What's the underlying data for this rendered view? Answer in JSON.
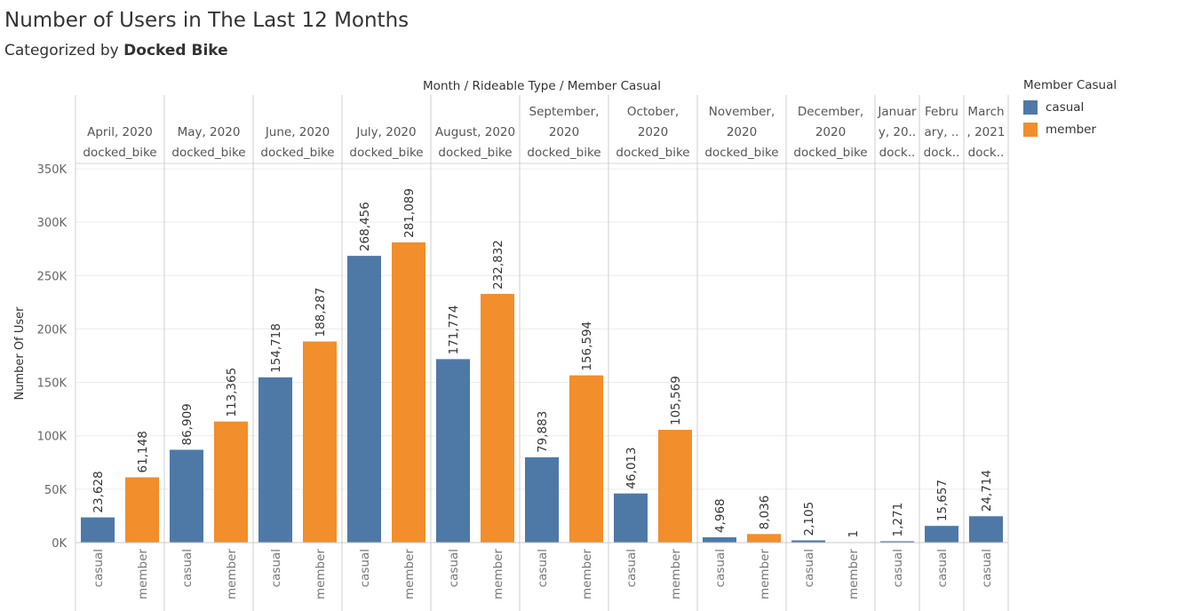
{
  "title": "Number of Users in The Last 12 Months",
  "subtitle_prefix": "Categorized by ",
  "subtitle_bold": "Docked Bike",
  "legend": {
    "title": "Member Casual",
    "items": [
      {
        "label": "casual",
        "color": "#4e79a7"
      },
      {
        "label": "member",
        "color": "#f28e2b"
      }
    ]
  },
  "chart_data": {
    "type": "bar",
    "column_header_title": "Month / Rideable Type / Member Casual",
    "ylabel": "Number Of User",
    "ylim": [
      0,
      350000
    ],
    "y_ticks": [
      {
        "value": 0,
        "label": "0K"
      },
      {
        "value": 50000,
        "label": "50K"
      },
      {
        "value": 100000,
        "label": "100K"
      },
      {
        "value": 150000,
        "label": "150K"
      },
      {
        "value": 200000,
        "label": "200K"
      },
      {
        "value": 250000,
        "label": "250K"
      },
      {
        "value": 300000,
        "label": "300K"
      },
      {
        "value": 350000,
        "label": "350K"
      }
    ],
    "grid": true,
    "legend_position": "top-right",
    "groups": [
      {
        "month_lines": [
          "April, 2020"
        ],
        "rideable": "docked_bike",
        "bars": [
          {
            "category": "casual",
            "value": 23628,
            "label": "23,628"
          },
          {
            "category": "member",
            "value": 61148,
            "label": "61,148"
          }
        ]
      },
      {
        "month_lines": [
          "May, 2020"
        ],
        "rideable": "docked_bike",
        "bars": [
          {
            "category": "casual",
            "value": 86909,
            "label": "86,909"
          },
          {
            "category": "member",
            "value": 113365,
            "label": "113,365"
          }
        ]
      },
      {
        "month_lines": [
          "June, 2020"
        ],
        "rideable": "docked_bike",
        "bars": [
          {
            "category": "casual",
            "value": 154718,
            "label": "154,718"
          },
          {
            "category": "member",
            "value": 188287,
            "label": "188,287"
          }
        ]
      },
      {
        "month_lines": [
          "July, 2020"
        ],
        "rideable": "docked_bike",
        "bars": [
          {
            "category": "casual",
            "value": 268456,
            "label": "268,456"
          },
          {
            "category": "member",
            "value": 281089,
            "label": "281,089"
          }
        ]
      },
      {
        "month_lines": [
          "August, 2020"
        ],
        "rideable": "docked_bike",
        "bars": [
          {
            "category": "casual",
            "value": 171774,
            "label": "171,774"
          },
          {
            "category": "member",
            "value": 232832,
            "label": "232,832"
          }
        ]
      },
      {
        "month_lines": [
          "September,",
          "2020"
        ],
        "rideable": "docked_bike",
        "bars": [
          {
            "category": "casual",
            "value": 79883,
            "label": "79,883"
          },
          {
            "category": "member",
            "value": 156594,
            "label": "156,594"
          }
        ]
      },
      {
        "month_lines": [
          "October,",
          "2020"
        ],
        "rideable": "docked_bike",
        "bars": [
          {
            "category": "casual",
            "value": 46013,
            "label": "46,013"
          },
          {
            "category": "member",
            "value": 105569,
            "label": "105,569"
          }
        ]
      },
      {
        "month_lines": [
          "November,",
          "2020"
        ],
        "rideable": "docked_bike",
        "bars": [
          {
            "category": "casual",
            "value": 4968,
            "label": "4,968"
          },
          {
            "category": "member",
            "value": 8036,
            "label": "8,036"
          }
        ]
      },
      {
        "month_lines": [
          "December,",
          "2020"
        ],
        "rideable": "docked_bike",
        "bars": [
          {
            "category": "casual",
            "value": 2105,
            "label": "2,105"
          },
          {
            "category": "member",
            "value": 1,
            "label": "1"
          }
        ]
      },
      {
        "month_lines": [
          "Januar",
          "y, 20.."
        ],
        "rideable": "dock..",
        "bars": [
          {
            "category": "casual",
            "value": 1271,
            "label": "1,271"
          }
        ]
      },
      {
        "month_lines": [
          "Febru",
          "ary, .."
        ],
        "rideable": "dock..",
        "bars": [
          {
            "category": "casual",
            "value": 15657,
            "label": "15,657"
          }
        ]
      },
      {
        "month_lines": [
          "March",
          ", 2021"
        ],
        "rideable": "dock..",
        "bars": [
          {
            "category": "casual",
            "value": 24714,
            "label": "24,714"
          }
        ]
      }
    ]
  }
}
